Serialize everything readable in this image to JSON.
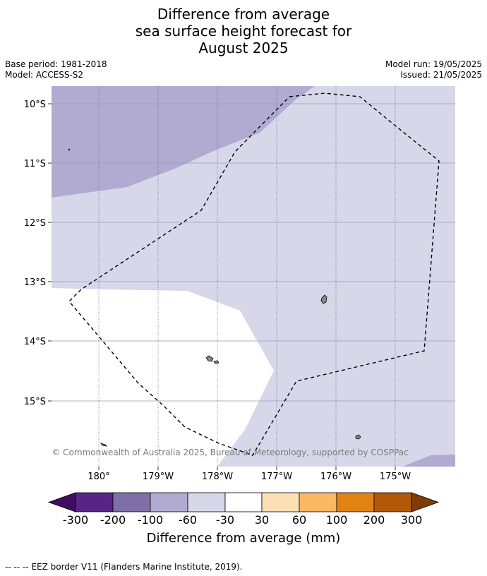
{
  "title_lines": [
    "Difference from average",
    "sea surface height forecast for",
    "August 2025"
  ],
  "meta": {
    "base_period": "Base period: 1981-2018",
    "model": "Model: ACCESS-S2",
    "model_run": "Model run: 19/05/2025",
    "issued": "Issued: 21/05/2025"
  },
  "map": {
    "lat_labels": [
      "10°S",
      "11°S",
      "12°S",
      "13°S",
      "14°S",
      "15°S"
    ],
    "lon_labels": [
      "180°",
      "179°W",
      "178°W",
      "177°W",
      "176°W",
      "175°W"
    ],
    "credit": "© Commonwealth of Australia 2025, Bureau of Meteorology, supported by COSPPac",
    "colors": {
      "band_-60_-30": "#d7d7ea",
      "band_-100_-60": "#b1aad1",
      "band_-30_30": "#ffffff",
      "land": "#888888",
      "grid": "#9a9ab8"
    }
  },
  "colorbar": {
    "ticks": [
      "-300",
      "-200",
      "-100",
      "-60",
      "-30",
      "30",
      "60",
      "100",
      "200",
      "300"
    ],
    "colors": [
      "#3f0e5f",
      "#582585",
      "#7f6fa9",
      "#b1aad1",
      "#d7d7ea",
      "#ffffff",
      "#fee0b6",
      "#fbb762",
      "#e08214",
      "#b35806",
      "#7f3b08"
    ],
    "title": "Difference from average (mm)"
  },
  "footnote": "--  --  -- EEZ border V11 (Flanders Marine Institute, 2019)."
}
